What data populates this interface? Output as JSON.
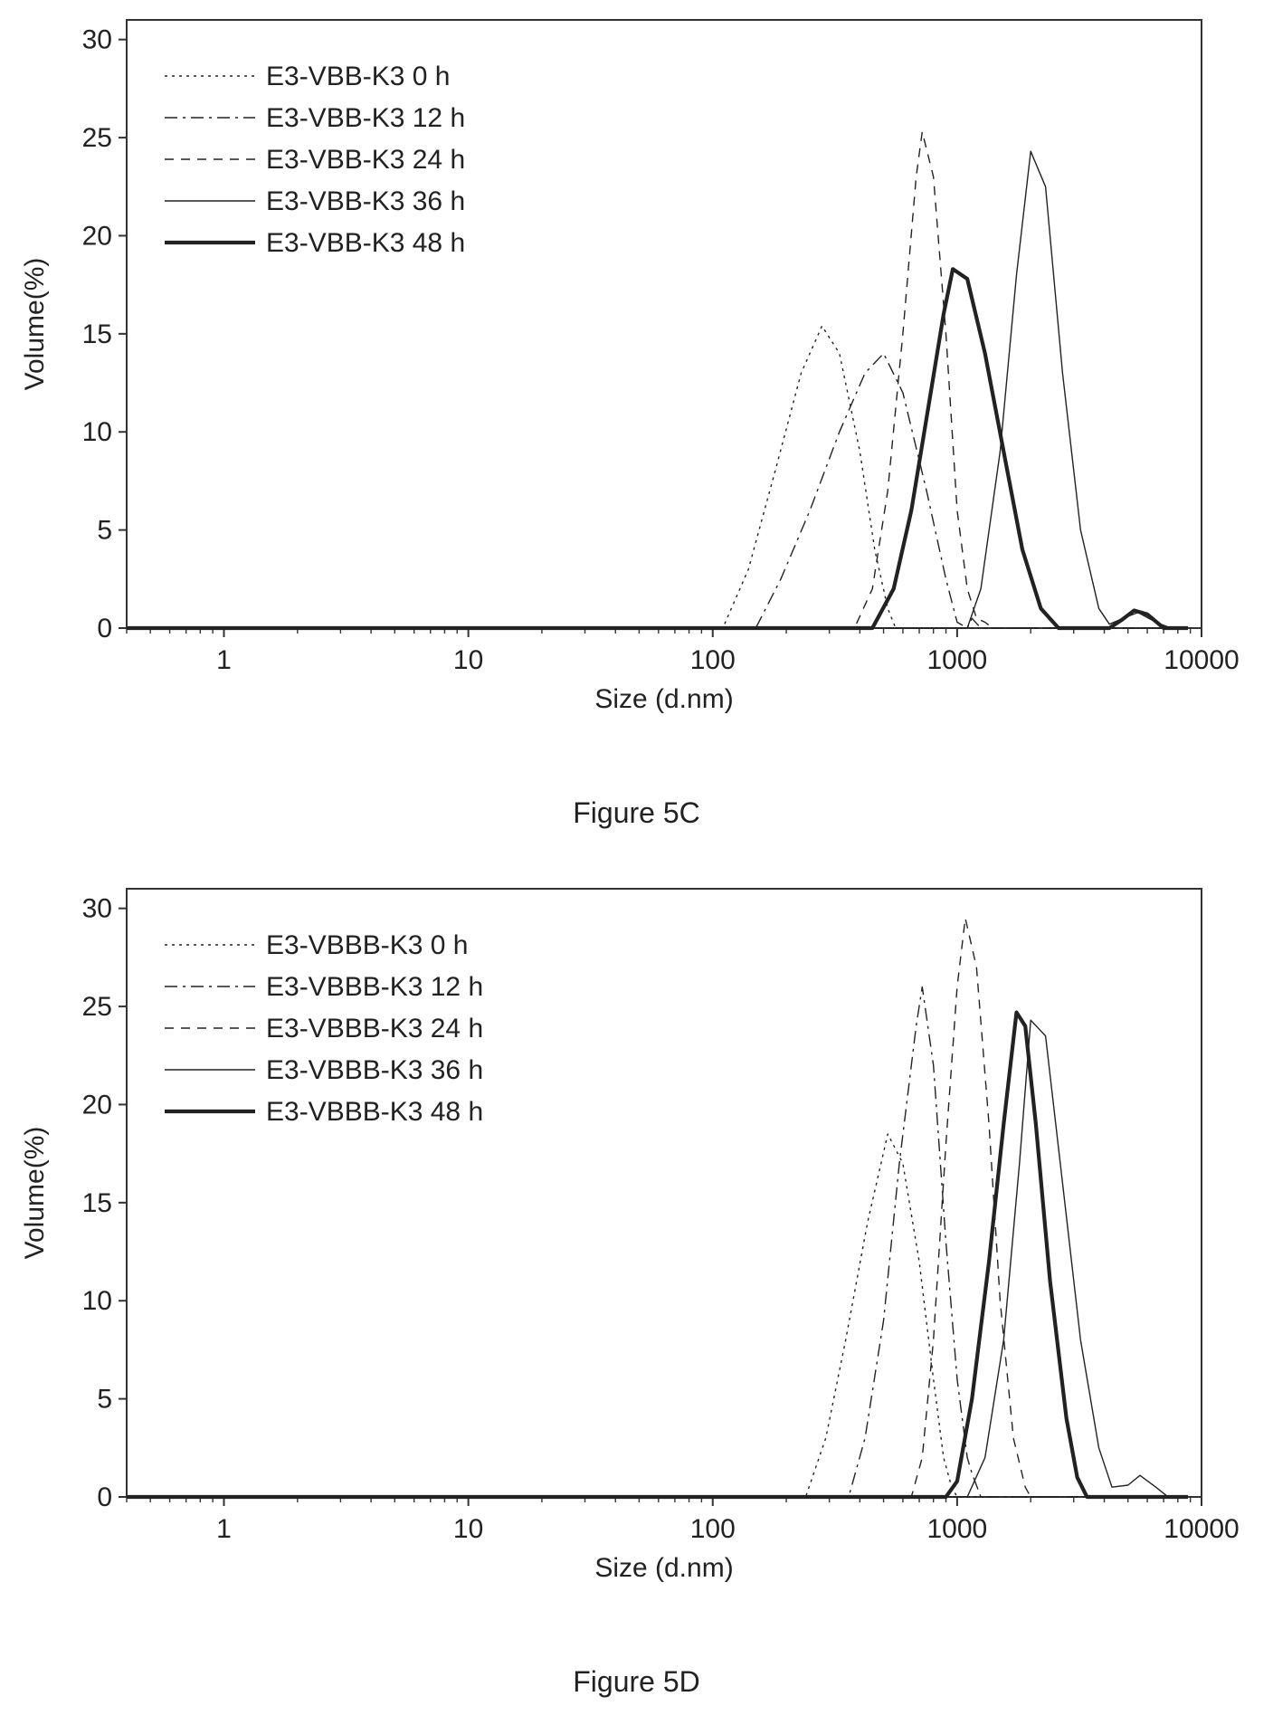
{
  "chart_data": [
    {
      "type": "line",
      "caption": "Figure 5C",
      "xlabel": "Size (d.nm)",
      "ylabel": "Volume(%)",
      "x_scale": "log",
      "xlim": [
        0.4,
        10000
      ],
      "ylim": [
        0,
        31
      ],
      "x_ticks": [
        1,
        10,
        100,
        1000,
        10000
      ],
      "x_tick_labels": [
        "1",
        "10",
        "100",
        "1000",
        "10000"
      ],
      "y_ticks": [
        0,
        5,
        10,
        15,
        20,
        25,
        30
      ],
      "y_tick_labels": [
        "0",
        "5",
        "10",
        "15",
        "20",
        "25",
        "30"
      ],
      "grid": false,
      "legend_position": "top-left",
      "series": [
        {
          "name": "E3-VBB-K3 0 h",
          "style": "dotted",
          "width": 1.4,
          "points": [
            [
              0.4,
              0
            ],
            [
              110,
              0
            ],
            [
              140,
              3
            ],
            [
              180,
              8
            ],
            [
              230,
              13
            ],
            [
              280,
              15.4
            ],
            [
              330,
              14
            ],
            [
              400,
              9
            ],
            [
              460,
              4
            ],
            [
              520,
              1
            ],
            [
              560,
              0
            ],
            [
              8800,
              0
            ]
          ]
        },
        {
          "name": "E3-VBB-K3 12 h",
          "style": "dashdot",
          "width": 1.4,
          "points": [
            [
              0.4,
              0
            ],
            [
              150,
              0
            ],
            [
              190,
              2.5
            ],
            [
              250,
              6
            ],
            [
              330,
              10
            ],
            [
              420,
              13
            ],
            [
              500,
              14
            ],
            [
              600,
              12
            ],
            [
              750,
              7
            ],
            [
              900,
              2.5
            ],
            [
              1000,
              0.3
            ],
            [
              1100,
              0
            ],
            [
              1150,
              0.5
            ],
            [
              1250,
              0
            ],
            [
              8800,
              0
            ]
          ]
        },
        {
          "name": "E3-VBB-K3 24 h",
          "style": "dashed",
          "width": 1.4,
          "points": [
            [
              0.4,
              0
            ],
            [
              380,
              0
            ],
            [
              450,
              2
            ],
            [
              520,
              7
            ],
            [
              600,
              15
            ],
            [
              680,
              23
            ],
            [
              720,
              25.3
            ],
            [
              800,
              23
            ],
            [
              900,
              15
            ],
            [
              1000,
              6
            ],
            [
              1100,
              2
            ],
            [
              1200,
              0.5
            ],
            [
              1300,
              0.3
            ],
            [
              1400,
              0
            ],
            [
              8800,
              0
            ]
          ]
        },
        {
          "name": "E3-VBB-K3 36 h",
          "style": "solid",
          "width": 1.4,
          "points": [
            [
              0.4,
              0
            ],
            [
              1100,
              0
            ],
            [
              1250,
              2
            ],
            [
              1500,
              9
            ],
            [
              1750,
              18
            ],
            [
              2000,
              24.3
            ],
            [
              2300,
              22.5
            ],
            [
              2700,
              13
            ],
            [
              3200,
              5
            ],
            [
              3800,
              1
            ],
            [
              4200,
              0.2
            ],
            [
              5000,
              0.6
            ],
            [
              5500,
              0.8
            ],
            [
              6500,
              0.3
            ],
            [
              7500,
              0
            ],
            [
              8800,
              0
            ]
          ]
        },
        {
          "name": "E3-VBB-K3 48 h",
          "style": "solid",
          "width": 4.2,
          "points": [
            [
              0.4,
              0
            ],
            [
              450,
              0
            ],
            [
              550,
              2
            ],
            [
              650,
              6
            ],
            [
              780,
              12
            ],
            [
              880,
              16
            ],
            [
              960,
              18.3
            ],
            [
              1100,
              17.8
            ],
            [
              1300,
              14
            ],
            [
              1550,
              9
            ],
            [
              1850,
              4
            ],
            [
              2200,
              1
            ],
            [
              2600,
              0
            ],
            [
              4200,
              0
            ],
            [
              4700,
              0.4
            ],
            [
              5300,
              0.9
            ],
            [
              6000,
              0.7
            ],
            [
              7000,
              0
            ],
            [
              8800,
              0
            ]
          ]
        }
      ]
    },
    {
      "type": "line",
      "caption": "Figure 5D",
      "xlabel": "Size (d.nm)",
      "ylabel": "Volume(%)",
      "x_scale": "log",
      "xlim": [
        0.4,
        10000
      ],
      "ylim": [
        0,
        31
      ],
      "x_ticks": [
        1,
        10,
        100,
        1000,
        10000
      ],
      "x_tick_labels": [
        "1",
        "10",
        "100",
        "1000",
        "10000"
      ],
      "y_ticks": [
        0,
        5,
        10,
        15,
        20,
        25,
        30
      ],
      "y_tick_labels": [
        "0",
        "5",
        "10",
        "15",
        "20",
        "25",
        "30"
      ],
      "grid": false,
      "legend_position": "top-left",
      "series": [
        {
          "name": "E3-VBBB-K3 0 h",
          "style": "dotted",
          "width": 1.4,
          "points": [
            [
              0.4,
              0
            ],
            [
              240,
              0
            ],
            [
              290,
              3
            ],
            [
              350,
              8
            ],
            [
              430,
              14
            ],
            [
              520,
              18.5
            ],
            [
              600,
              17
            ],
            [
              700,
              12
            ],
            [
              800,
              6
            ],
            [
              880,
              2
            ],
            [
              950,
              0.5
            ],
            [
              1000,
              0
            ],
            [
              8800,
              0
            ]
          ]
        },
        {
          "name": "E3-VBBB-K3 12 h",
          "style": "dashdot",
          "width": 1.4,
          "points": [
            [
              0.4,
              0
            ],
            [
              360,
              0
            ],
            [
              420,
              3
            ],
            [
              500,
              9
            ],
            [
              580,
              17
            ],
            [
              680,
              24
            ],
            [
              720,
              26
            ],
            [
              800,
              22
            ],
            [
              900,
              13
            ],
            [
              1000,
              6
            ],
            [
              1100,
              2
            ],
            [
              1150,
              1.2
            ],
            [
              1250,
              0
            ],
            [
              8800,
              0
            ]
          ]
        },
        {
          "name": "E3-VBBB-K3 24 h",
          "style": "dashed",
          "width": 1.4,
          "points": [
            [
              0.4,
              0
            ],
            [
              650,
              0
            ],
            [
              720,
              2
            ],
            [
              800,
              8
            ],
            [
              900,
              18
            ],
            [
              1000,
              26
            ],
            [
              1080,
              29.5
            ],
            [
              1200,
              27
            ],
            [
              1350,
              19
            ],
            [
              1500,
              10
            ],
            [
              1700,
              3
            ],
            [
              1900,
              0.5
            ],
            [
              2000,
              0
            ],
            [
              8800,
              0
            ]
          ]
        },
        {
          "name": "E3-VBBB-K3 36 h",
          "style": "solid",
          "width": 1.4,
          "points": [
            [
              0.4,
              0
            ],
            [
              1100,
              0
            ],
            [
              1300,
              2
            ],
            [
              1550,
              8
            ],
            [
              1800,
              17
            ],
            [
              2000,
              24.3
            ],
            [
              2300,
              23.5
            ],
            [
              2700,
              16
            ],
            [
              3200,
              8
            ],
            [
              3800,
              2.5
            ],
            [
              4300,
              0.5
            ],
            [
              5000,
              0.6
            ],
            [
              5600,
              1.1
            ],
            [
              6500,
              0.5
            ],
            [
              7300,
              0
            ],
            [
              8800,
              0
            ]
          ]
        },
        {
          "name": "E3-VBBB-K3 48 h",
          "style": "solid",
          "width": 4.2,
          "points": [
            [
              0.4,
              0
            ],
            [
              900,
              0
            ],
            [
              1000,
              0.8
            ],
            [
              1150,
              5
            ],
            [
              1350,
              12
            ],
            [
              1550,
              19
            ],
            [
              1750,
              24.7
            ],
            [
              1900,
              24
            ],
            [
              2100,
              19
            ],
            [
              2400,
              11
            ],
            [
              2800,
              4
            ],
            [
              3100,
              1
            ],
            [
              3400,
              0
            ],
            [
              8800,
              0
            ]
          ]
        }
      ]
    }
  ]
}
